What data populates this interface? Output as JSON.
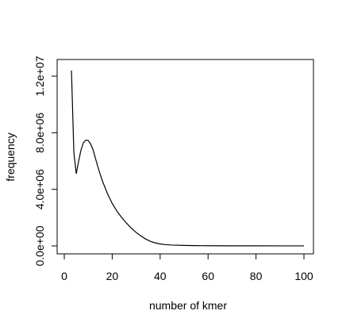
{
  "chart_data": {
    "type": "line",
    "title": "",
    "xlabel": "number of kmer",
    "ylabel": "frequency",
    "xlim": [
      0,
      100
    ],
    "ylim": [
      0,
      12000000
    ],
    "x_ticks": [
      0,
      20,
      40,
      60,
      80,
      100
    ],
    "x_tick_labels": [
      "0",
      "20",
      "40",
      "60",
      "80",
      "100"
    ],
    "y_ticks": [
      0,
      4000000,
      8000000,
      12000000
    ],
    "y_tick_labels": [
      "0.0e+00",
      "4.0e+06",
      "8.0e+06",
      "1.2e+07"
    ],
    "grid": false,
    "series": [
      {
        "x": [
          3,
          4,
          5,
          6,
          7,
          8,
          9,
          10,
          11,
          12,
          13,
          14,
          15,
          16,
          18,
          20,
          22,
          24,
          26,
          28,
          30,
          32,
          34,
          36,
          38,
          40,
          42,
          45,
          50,
          55,
          60,
          70,
          80,
          90,
          100
        ],
        "y": [
          12400000,
          6600000,
          5100000,
          6000000,
          6800000,
          7300000,
          7480000,
          7450000,
          7200000,
          6800000,
          6200000,
          5600000,
          5050000,
          4550000,
          3700000,
          3000000,
          2450000,
          2000000,
          1600000,
          1250000,
          950000,
          700000,
          480000,
          320000,
          210000,
          140000,
          95000,
          60000,
          35000,
          22000,
          15000,
          9000,
          6000,
          4000,
          3000
        ],
        "color": "#000000"
      }
    ]
  }
}
